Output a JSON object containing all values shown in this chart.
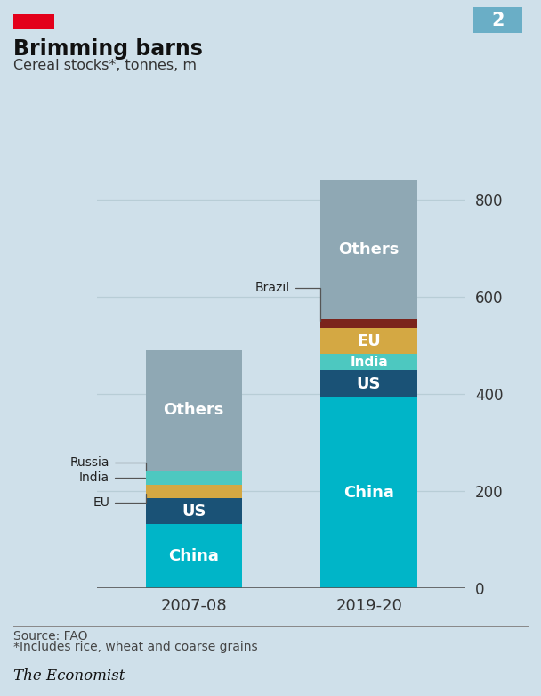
{
  "title": "Brimming barns",
  "subtitle": "Cereal stocks*, tonnes, m",
  "source": "Source: FAO",
  "footnote": "*Includes rice, wheat and coarse grains",
  "background_color": "#cfe0ea",
  "bar_width": 0.55,
  "categories": [
    "2007-08",
    "2019-20"
  ],
  "segments_2007": [
    {
      "label": "China",
      "value": 132,
      "color": "#00b5c8",
      "show_label": true
    },
    {
      "label": "US",
      "value": 53,
      "color": "#1a5276",
      "show_label": true
    },
    {
      "label": "EU",
      "value": 28,
      "color": "#d4a843",
      "show_label": false
    },
    {
      "label": "India",
      "value": 18,
      "color": "#4dc8c0",
      "show_label": false
    },
    {
      "label": "Russia",
      "value": 12,
      "color": "#4dc8c0",
      "show_label": false
    },
    {
      "label": "Others",
      "value": 247,
      "color": "#8fa8b4",
      "show_label": true
    }
  ],
  "segments_2020": [
    {
      "label": "China",
      "value": 392,
      "color": "#00b5c8",
      "show_label": true
    },
    {
      "label": "US",
      "value": 58,
      "color": "#1a5276",
      "show_label": true
    },
    {
      "label": "India",
      "value": 32,
      "color": "#4dc8c0",
      "show_label": true
    },
    {
      "label": "EU",
      "value": 54,
      "color": "#d4a843",
      "show_label": true
    },
    {
      "label": "Brazil",
      "value": 18,
      "color": "#7b241c",
      "show_label": false
    },
    {
      "label": "Others",
      "value": 286,
      "color": "#8fa8b4",
      "show_label": true
    }
  ],
  "ylim": [
    0,
    860
  ],
  "yticks": [
    0,
    200,
    400,
    600,
    800
  ],
  "economist_red": "#e3001b",
  "number_label": "2",
  "number_bg": "#6aaec6",
  "grid_color": "#b8cdd6",
  "axis_line_color": "#555555"
}
